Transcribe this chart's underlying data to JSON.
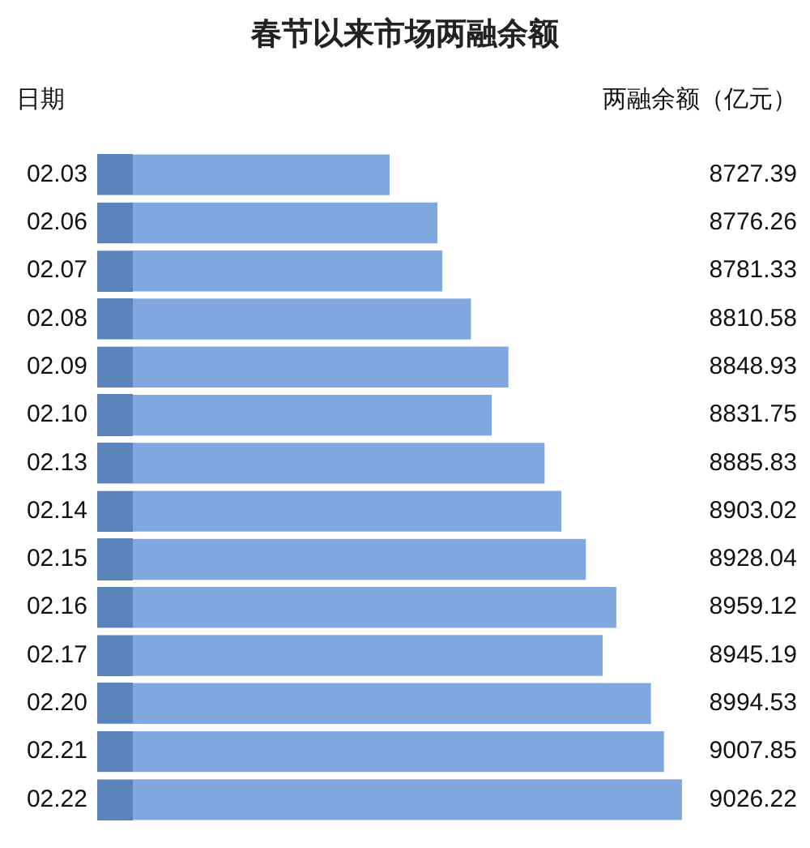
{
  "chart_data": {
    "type": "bar",
    "orientation": "horizontal",
    "title": "春节以来市场两融余额",
    "ylabel": "日期",
    "xlabel": "两融余额（亿元）",
    "categories": [
      "02.03",
      "02.06",
      "02.07",
      "02.08",
      "02.09",
      "02.10",
      "02.13",
      "02.14",
      "02.15",
      "02.16",
      "02.17",
      "02.20",
      "02.21",
      "02.22"
    ],
    "values": [
      8727.39,
      8776.26,
      8781.33,
      8810.58,
      8848.93,
      8831.75,
      8885.83,
      8903.02,
      8928.04,
      8959.12,
      8945.19,
      8994.53,
      9007.85,
      9026.22
    ],
    "color": "#80a8de",
    "data_labels": true,
    "tick_labels": "y",
    "grid": false,
    "legend": false
  }
}
